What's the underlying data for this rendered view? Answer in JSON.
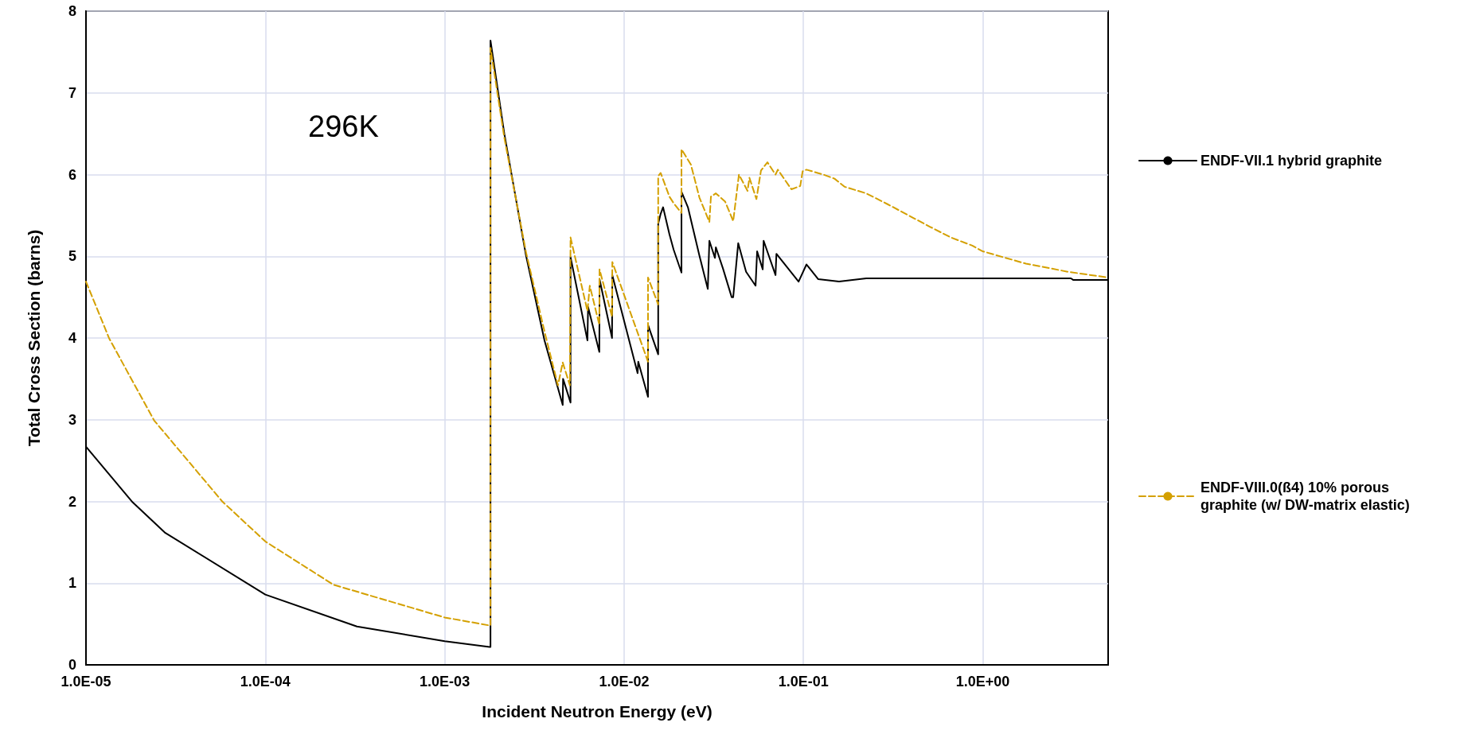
{
  "chart_data": {
    "type": "line",
    "xlabel": "Incident Neutron Energy (eV)",
    "ylabel": "Total Cross Section (barns)",
    "annotations": [
      "296K"
    ],
    "log": "x",
    "xlim": [
      1e-05,
      5
    ],
    "ylim": [
      0,
      8
    ],
    "xticks": [
      {
        "value": 1e-05,
        "label": "1.0E-05"
      },
      {
        "value": 0.0001,
        "label": "1.0E-04"
      },
      {
        "value": 0.001,
        "label": "1.0E-03"
      },
      {
        "value": 0.01,
        "label": "1.0E-02"
      },
      {
        "value": 0.1,
        "label": "1.0E-01"
      },
      {
        "value": 1,
        "label": "1.0E+00"
      }
    ],
    "yticks": [
      0,
      1,
      2,
      3,
      4,
      5,
      6,
      7,
      8
    ],
    "grid": true,
    "legend": "right",
    "marker": "none",
    "series": [
      {
        "name": "ENDF-VII.1 hybrid graphite",
        "color": "#000000",
        "line_style": "solid",
        "x": [
          1e-05,
          1.82e-05,
          2.75e-05,
          0.0001,
          0.000324,
          0.001,
          0.00178,
          0.0018,
          0.0018,
          0.00215,
          0.00284,
          0.0036,
          0.00455,
          0.00457,
          0.00503,
          0.00503,
          0.00625,
          0.0063,
          0.00728,
          0.0073,
          0.00857,
          0.0086,
          0.0119,
          0.012,
          0.0136,
          0.0136,
          0.0155,
          0.0155,
          0.016,
          0.0165,
          0.0179,
          0.0189,
          0.0209,
          0.0209,
          0.0227,
          0.0263,
          0.0293,
          0.0299,
          0.0321,
          0.0325,
          0.0356,
          0.0398,
          0.0406,
          0.0433,
          0.0479,
          0.0541,
          0.0552,
          0.0593,
          0.06,
          0.0699,
          0.0707,
          0.094,
          0.104,
          0.121,
          0.158,
          0.224,
          0.366,
          3.1,
          3.2,
          5
        ],
        "values": [
          2.67,
          1.99,
          1.62,
          0.86,
          0.47,
          0.29,
          0.22,
          0.22,
          7.64,
          6.5,
          5.01,
          3.97,
          3.18,
          3.5,
          3.21,
          4.99,
          3.97,
          4.38,
          3.83,
          4.72,
          4.0,
          4.77,
          3.57,
          3.71,
          3.28,
          4.16,
          3.8,
          5.4,
          5.52,
          5.6,
          5.27,
          5.08,
          4.8,
          5.79,
          5.6,
          5.01,
          4.6,
          5.19,
          4.98,
          5.11,
          4.85,
          4.5,
          4.5,
          5.16,
          4.81,
          4.64,
          5.06,
          4.84,
          5.19,
          4.77,
          5.03,
          4.69,
          4.9,
          4.72,
          4.69,
          4.73,
          4.73,
          4.73,
          4.71,
          4.71
        ]
      },
      {
        "name": "ENDF-VIII.0(ß4) 10% porous graphite (w/ DW-matrix elastic)",
        "color": "#d4a000",
        "line_style": "dashed",
        "x": [
          1e-05,
          1.35e-05,
          2.4e-05,
          5.75e-05,
          0.0001,
          0.00024,
          0.001,
          0.0018,
          0.0018,
          0.00215,
          0.00284,
          0.0036,
          0.00428,
          0.00455,
          0.00499,
          0.00503,
          0.00625,
          0.00644,
          0.00728,
          0.0073,
          0.00857,
          0.0086,
          0.0136,
          0.0136,
          0.0155,
          0.0155,
          0.016,
          0.0179,
          0.0189,
          0.0209,
          0.0209,
          0.0236,
          0.0263,
          0.0299,
          0.0305,
          0.0325,
          0.0366,
          0.0406,
          0.0437,
          0.0488,
          0.05,
          0.0547,
          0.058,
          0.063,
          0.0699,
          0.072,
          0.0857,
          0.096,
          0.099,
          0.104,
          0.129,
          0.149,
          0.17,
          0.224,
          0.293,
          0.386,
          0.509,
          0.664,
          0.875,
          1,
          1.74,
          2.99,
          5
        ],
        "values": [
          4.69,
          3.99,
          2.99,
          2.0,
          1.51,
          0.98,
          0.58,
          0.48,
          7.55,
          6.45,
          5.05,
          4.08,
          3.42,
          3.7,
          3.42,
          5.23,
          4.33,
          4.64,
          4.16,
          4.84,
          4.26,
          4.93,
          3.71,
          4.74,
          4.41,
          5.98,
          6.02,
          5.73,
          5.65,
          5.53,
          6.31,
          6.12,
          5.72,
          5.42,
          5.73,
          5.77,
          5.67,
          5.43,
          6.0,
          5.8,
          5.96,
          5.7,
          6.05,
          6.15,
          6.0,
          6.06,
          5.82,
          5.86,
          6.04,
          6.06,
          6.0,
          5.95,
          5.85,
          5.77,
          5.64,
          5.5,
          5.36,
          5.23,
          5.13,
          5.06,
          4.91,
          4.81,
          4.74
        ]
      }
    ]
  }
}
